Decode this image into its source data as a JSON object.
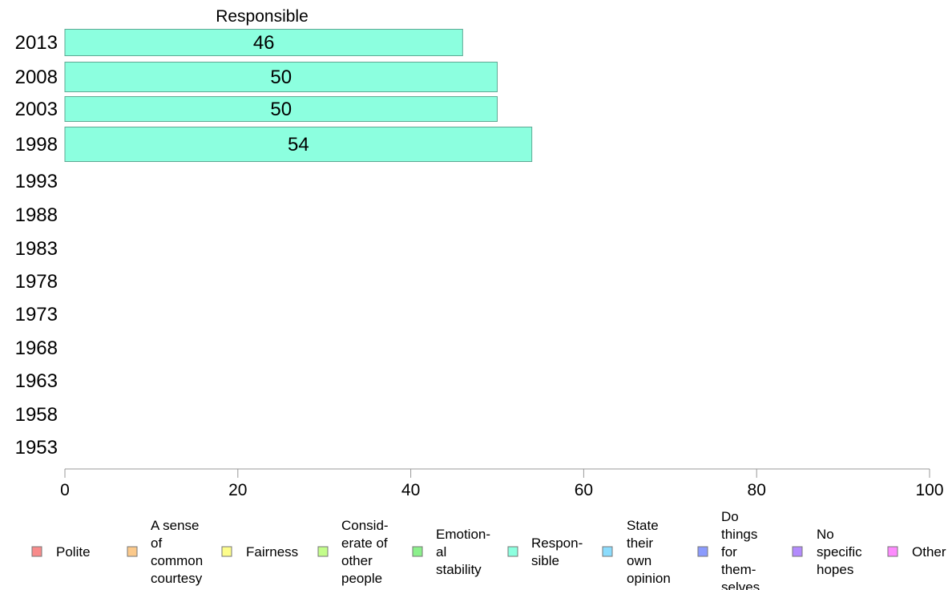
{
  "chart_data": {
    "type": "bar",
    "orientation": "horizontal",
    "title": "Responsible",
    "categories": [
      "2013",
      "2008",
      "2003",
      "1998",
      "1993",
      "1988",
      "1983",
      "1978",
      "1973",
      "1968",
      "1963",
      "1958",
      "1953"
    ],
    "series": [
      {
        "name": "Responsible",
        "color": "#8cffdf",
        "values": [
          46,
          50,
          50,
          54,
          null,
          null,
          null,
          null,
          null,
          null,
          null,
          null,
          null
        ]
      }
    ],
    "data_labels": [
      "46",
      "50",
      "50",
      "54"
    ],
    "xlim": [
      0,
      100
    ],
    "x_ticks": [
      0,
      20,
      40,
      60,
      80,
      100
    ],
    "grid": false,
    "legend": {
      "placement": "bottom",
      "entries": [
        {
          "label": "Polite",
          "color": "#f88b8b"
        },
        {
          "label": "A sense of common courtesy",
          "color": "#fbc98b"
        },
        {
          "label": "Fairness",
          "color": "#fdfd8b"
        },
        {
          "label": "Consid-erate of other people",
          "color": "#c3fd8b"
        },
        {
          "label": "Emotion-al stability",
          "color": "#8bf08b"
        },
        {
          "label": "Respon-sible",
          "color": "#8cffdf"
        },
        {
          "label": "State their own opinion",
          "color": "#8bdcfd"
        },
        {
          "label": "Do things for them-selves",
          "color": "#8b9bfd"
        },
        {
          "label": "No specific hopes",
          "color": "#b38bfd"
        },
        {
          "label": "Other",
          "color": "#fd8bfd"
        }
      ]
    }
  }
}
